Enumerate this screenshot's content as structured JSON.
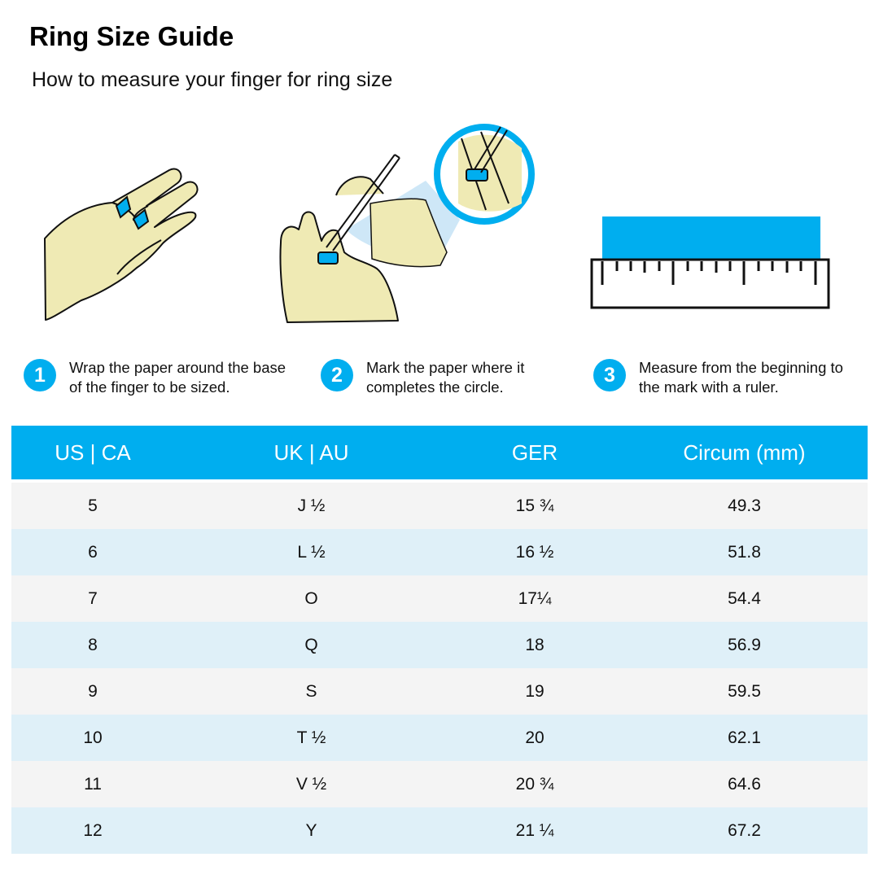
{
  "title": "Ring Size Guide",
  "subtitle": "How to measure your finger for ring size",
  "colors": {
    "accent": "#00aeef",
    "skin": "#efeab4",
    "row_odd": "#f4f4f4",
    "row_even": "#dff0f8"
  },
  "steps": [
    {
      "number": "1",
      "text": "Wrap the paper around the base of the finger to be sized."
    },
    {
      "number": "2",
      "text": "Mark the paper where it completes the circle."
    },
    {
      "number": "3",
      "text": "Measure from the beginning to the mark with a ruler."
    }
  ],
  "illustrations": [
    "hand-wrapped-paper-icon",
    "hand-marking-pen-icon",
    "ruler-icon"
  ],
  "table": {
    "headers": [
      "US | CA",
      "UK | AU",
      "GER",
      "Circum (mm)"
    ],
    "rows": [
      [
        "5",
        "J ½",
        "15 ¾",
        "49.3"
      ],
      [
        "6",
        "L ½",
        "16 ½",
        "51.8"
      ],
      [
        "7",
        "O",
        "17¼",
        "54.4"
      ],
      [
        "8",
        "Q",
        "18",
        "56.9"
      ],
      [
        "9",
        "S",
        "19",
        "59.5"
      ],
      [
        "10",
        "T ½",
        "20",
        "62.1"
      ],
      [
        "11",
        "V ½",
        "20 ¾",
        "64.6"
      ],
      [
        "12",
        "Y",
        "21 ¼",
        "67.2"
      ]
    ]
  }
}
